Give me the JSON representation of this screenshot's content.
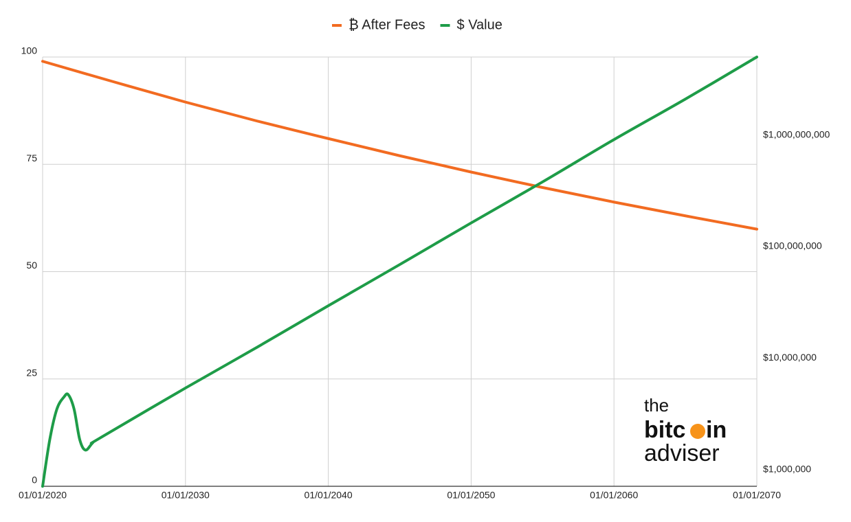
{
  "chart_data": {
    "type": "line",
    "xlim": [
      2020,
      2070
    ],
    "xticks": [
      {
        "value": 2020,
        "label": "01/01/2020"
      },
      {
        "value": 2030,
        "label": "01/01/2030"
      },
      {
        "value": 2040,
        "label": "01/01/2040"
      },
      {
        "value": 2050,
        "label": "01/01/2050"
      },
      {
        "value": 2060,
        "label": "01/01/2060"
      },
      {
        "value": 2070,
        "label": "01/01/2070"
      }
    ],
    "ylim": [
      0,
      100
    ],
    "yticks": [
      0,
      25,
      50,
      75,
      100
    ],
    "y2lim": [
      711000,
      5000000000
    ],
    "y2log": true,
    "y2ticks": [
      {
        "value": 1000000,
        "label": "$1,000,000"
      },
      {
        "value": 10000000,
        "label": "$10,000,000"
      },
      {
        "value": 100000000,
        "label": "$100,000,000"
      },
      {
        "value": 1000000000,
        "label": "$1,000,000,000"
      }
    ],
    "grid": true,
    "legend": "top",
    "series": [
      {
        "name": "₿ After Fees",
        "color": "#f26b21",
        "x": [
          2020,
          2025,
          2030,
          2035,
          2040,
          2045,
          2050,
          2055,
          2060,
          2065,
          2070
        ],
        "values": [
          99,
          94.2,
          89.5,
          85.1,
          81,
          77,
          73.2,
          69.6,
          66.2,
          63,
          59.9
        ]
      },
      {
        "name": "$ Value",
        "color": "#1e9c48",
        "axis": "y2",
        "x": [
          2020,
          2020.5,
          2021,
          2021.5,
          2021.8,
          2022.2,
          2022.6,
          2023,
          2023.5,
          2024,
          2030,
          2035,
          2040,
          2045,
          2050,
          2055,
          2060,
          2065,
          2070
        ],
        "values": [
          711000,
          1860000,
          3500000,
          4500000,
          4700000,
          3500000,
          1860000,
          1500000,
          1740000,
          1920000,
          5400000,
          12500000,
          29500000,
          69000000,
          163000000,
          380000000,
          910000000,
          2100000000,
          5000000000
        ]
      }
    ]
  },
  "logo": {
    "line1": "the",
    "line2a": "bitc",
    "line2b": "in",
    "line3": "adviser"
  }
}
